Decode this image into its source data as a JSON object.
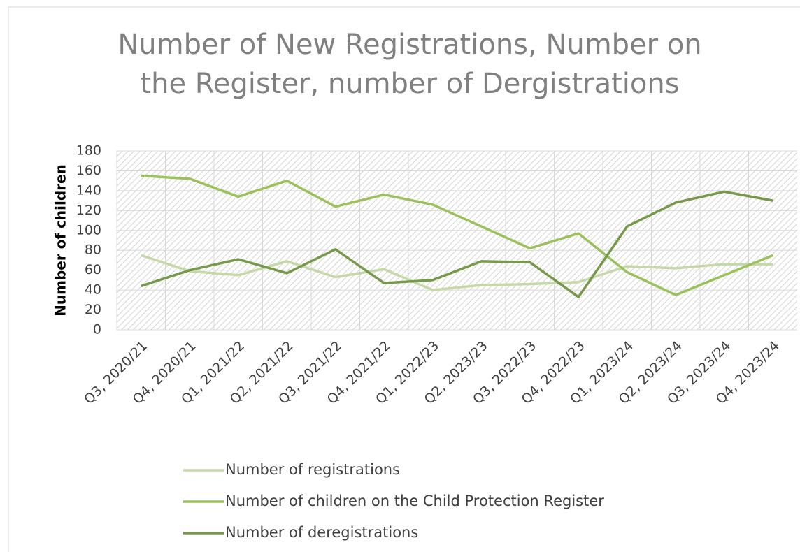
{
  "chart_data": {
    "type": "line",
    "title": "Number of New Registrations, Number on the Register, number of Dergistrations",
    "ylabel": "Number of children",
    "categories": [
      "Q3, 2020/21",
      "Q4, 2020/21",
      "Q1, 2021/22",
      "Q2, 2021/22",
      "Q3, 2021/22",
      "Q4, 2021/22",
      "Q1, 2022/23",
      "Q2, 2023/23",
      "Q3, 2022/23",
      "Q4, 2022/23",
      "Q1, 2023/24",
      "Q2, 2023/24",
      "Q3, 2023/24",
      "Q4, 2023/24"
    ],
    "series": [
      {
        "name": "Number of registrations",
        "color": "#c5d9a8",
        "values": [
          75,
          59,
          55,
          69,
          53,
          61,
          40,
          45,
          46,
          48,
          64,
          62,
          66,
          66
        ]
      },
      {
        "name": "Number of children on the Child Protection Register",
        "color": "#9bc25a",
        "values": [
          155,
          152,
          134,
          150,
          124,
          136,
          126,
          104,
          82,
          97,
          58,
          35,
          55,
          75
        ]
      },
      {
        "name": "Number of deregistrations",
        "color": "#76994a",
        "values": [
          44,
          60,
          71,
          57,
          81,
          47,
          50,
          69,
          68,
          33,
          104,
          128,
          139,
          130
        ]
      }
    ],
    "ylim": [
      0,
      180
    ],
    "yticks": [
      0,
      20,
      40,
      60,
      80,
      100,
      120,
      140,
      160,
      180
    ],
    "grid": true
  }
}
